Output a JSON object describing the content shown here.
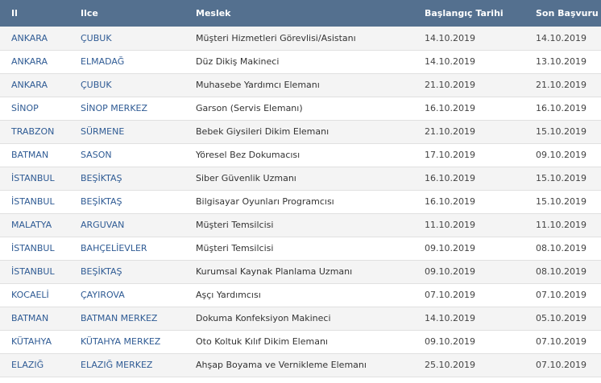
{
  "table": {
    "headers": [
      "Il",
      "Ilce",
      "Meslek",
      "Başlangıç Tarihi",
      "Son Başvuru"
    ],
    "rows": [
      [
        "ANKARA",
        "ÇUBUK",
        "Müşteri Hizmetleri Görevlisi/Asistanı",
        "14.10.2019",
        "14.10.2019"
      ],
      [
        "ANKARA",
        "ELMADAĞ",
        "Düz Dikiş Makineci",
        "14.10.2019",
        "13.10.2019"
      ],
      [
        "ANKARA",
        "ÇUBUK",
        "Muhasebe Yardımcı Elemanı",
        "21.10.2019",
        "21.10.2019"
      ],
      [
        "SİNOP",
        "SİNOP MERKEZ",
        "Garson (Servis Elemanı)",
        "16.10.2019",
        "16.10.2019"
      ],
      [
        "TRABZON",
        "SÜRMENE",
        "Bebek Giysileri Dikim Elemanı",
        "21.10.2019",
        "15.10.2019"
      ],
      [
        "BATMAN",
        "SASON",
        "Yöresel Bez Dokumacısı",
        "17.10.2019",
        "09.10.2019"
      ],
      [
        "İSTANBUL",
        "BEŞİKTAŞ",
        "Siber Güvenlik Uzmanı",
        "16.10.2019",
        "15.10.2019"
      ],
      [
        "İSTANBUL",
        "BEŞİKTAŞ",
        "Bilgisayar Oyunları Programcısı",
        "16.10.2019",
        "15.10.2019"
      ],
      [
        "MALATYA",
        "ARGUVAN",
        "Müşteri Temsilcisi",
        "11.10.2019",
        "11.10.2019"
      ],
      [
        "İSTANBUL",
        "BAHÇELİEVLER",
        "Müşteri Temsilcisi",
        "09.10.2019",
        "08.10.2019"
      ],
      [
        "İSTANBUL",
        "BEŞİKTAŞ",
        "Kurumsal Kaynak Planlama Uzmanı",
        "09.10.2019",
        "08.10.2019"
      ],
      [
        "KOCAELİ",
        "ÇAYIROVA",
        "Aşçı Yardımcısı",
        "07.10.2019",
        "07.10.2019"
      ],
      [
        "BATMAN",
        "BATMAN MERKEZ",
        "Dokuma Konfeksiyon Makineci",
        "14.10.2019",
        "05.10.2019"
      ],
      [
        "KÜTAHYA",
        "KÜTAHYA MERKEZ",
        "Oto Koltuk Kılıf Dikim Elemanı",
        "09.10.2019",
        "07.10.2019"
      ],
      [
        "ELAZIĞ",
        "ELAZIĞ MERKEZ",
        "Ahşap Boyama ve Vernikleme Elemanı",
        "25.10.2019",
        "07.10.2019"
      ]
    ]
  },
  "colors": {
    "header_bg": "#54708f",
    "link_text": "#2f5b94",
    "row_alt": "#f4f4f4"
  }
}
